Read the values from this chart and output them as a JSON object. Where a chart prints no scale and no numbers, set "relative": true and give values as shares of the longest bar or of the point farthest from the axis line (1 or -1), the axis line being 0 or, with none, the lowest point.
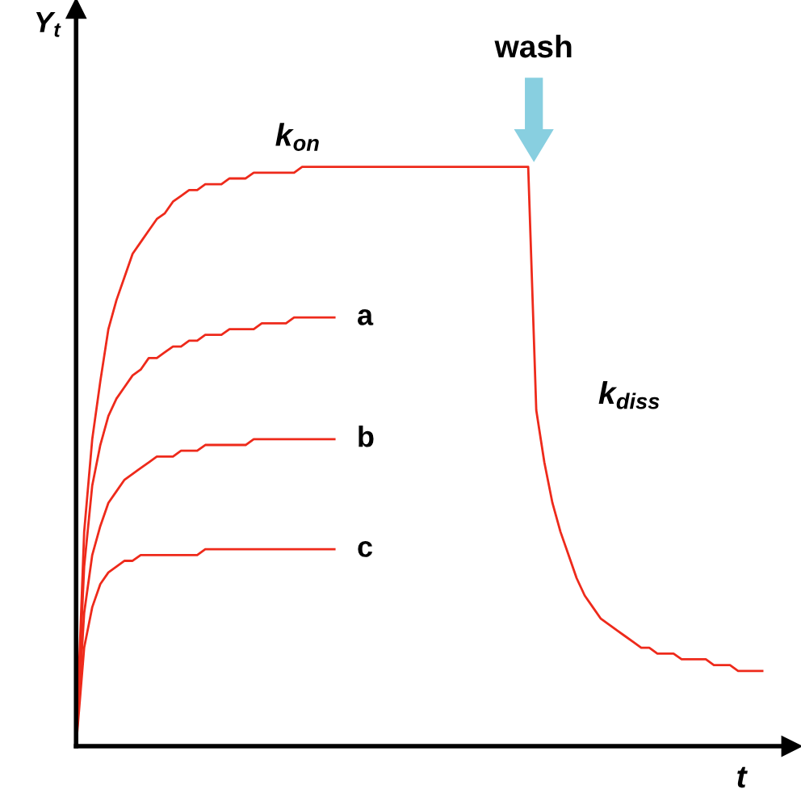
{
  "chart_data": {
    "type": "line",
    "relative": true,
    "xlabel": "t",
    "ylabel": "Y$_{t}$",
    "categories": [
      null,
      null,
      null,
      null,
      null,
      null,
      null,
      null,
      null,
      null,
      null,
      null,
      null,
      null,
      null,
      null,
      null,
      null,
      null,
      null,
      null,
      null,
      null,
      null,
      null,
      null,
      null,
      null,
      null,
      null,
      null,
      null,
      null,
      null,
      null,
      null,
      null,
      null,
      null,
      null,
      null,
      null,
      null,
      null,
      null,
      null,
      null,
      null,
      null,
      null,
      null,
      null,
      null,
      null,
      null,
      null,
      null,
      null,
      null,
      null,
      null,
      null,
      null,
      null,
      null,
      null,
      null,
      null,
      null,
      null,
      null,
      null,
      null,
      null,
      null,
      null,
      null,
      null,
      null,
      null,
      null,
      null,
      null,
      null,
      null,
      null
    ],
    "series": [
      {
        "color": "#ee2a1b",
        "values": [
          0,
          0.37,
          0.53,
          0.63,
          0.72,
          0.77,
          0.81,
          0.85,
          0.87,
          0.89,
          0.91,
          0.92,
          0.94,
          0.95,
          0.96,
          0.96,
          0.97,
          0.97,
          0.97,
          0.98,
          0.98,
          0.98,
          0.99,
          0.99,
          0.99,
          0.99,
          0.99,
          0.99,
          1,
          1,
          1,
          1,
          1,
          1,
          1,
          1,
          1,
          1,
          1,
          1,
          1,
          1,
          1,
          1,
          1,
          1,
          1,
          1,
          1,
          1,
          1,
          1,
          1,
          1,
          1,
          1,
          1,
          0.58,
          0.49,
          0.42,
          0.37,
          0.33,
          0.29,
          0.26,
          0.24,
          0.22,
          0.21,
          0.2,
          0.19,
          0.18,
          0.17,
          0.17,
          0.16,
          0.16,
          0.16,
          0.15,
          0.15,
          0.15,
          0.15,
          0.14,
          0.14,
          0.14,
          0.13,
          0.13,
          0.13,
          0.13
        ]
      },
      {
        "name": "a",
        "color": "#ee2a1b",
        "values": [
          0,
          0.31,
          0.45,
          0.52,
          0.57,
          0.6,
          0.62,
          0.64,
          0.65,
          0.67,
          0.67,
          0.68,
          0.69,
          0.69,
          0.7,
          0.7,
          0.71,
          0.71,
          0.71,
          0.72,
          0.72,
          0.72,
          0.72,
          0.73,
          0.73,
          0.73,
          0.73,
          0.74,
          0.74,
          0.74,
          0.74,
          0.74,
          0.74,
          null,
          null,
          null,
          null,
          null,
          null,
          null,
          null,
          null,
          null,
          null,
          null,
          null,
          null,
          null,
          null,
          null,
          null,
          null,
          null,
          null,
          null,
          null,
          null,
          null,
          null,
          null,
          null,
          null,
          null,
          null,
          null,
          null,
          null,
          null,
          null,
          null,
          null,
          null,
          null,
          null,
          null,
          null,
          null,
          null,
          null,
          null,
          null,
          null,
          null,
          null,
          null,
          null
        ]
      },
      {
        "name": "b",
        "color": "#ee2a1b",
        "values": [
          0,
          0.23,
          0.33,
          0.38,
          0.42,
          0.44,
          0.46,
          0.47,
          0.48,
          0.49,
          0.5,
          0.5,
          0.5,
          0.51,
          0.51,
          0.51,
          0.52,
          0.52,
          0.52,
          0.52,
          0.52,
          0.52,
          0.53,
          0.53,
          0.53,
          0.53,
          0.53,
          0.53,
          0.53,
          0.53,
          0.53,
          0.53,
          0.53,
          null,
          null,
          null,
          null,
          null,
          null,
          null,
          null,
          null,
          null,
          null,
          null,
          null,
          null,
          null,
          null,
          null,
          null,
          null,
          null,
          null,
          null,
          null,
          null,
          null,
          null,
          null,
          null,
          null,
          null,
          null,
          null,
          null,
          null,
          null,
          null,
          null,
          null,
          null,
          null,
          null,
          null,
          null,
          null,
          null,
          null,
          null,
          null,
          null,
          null,
          null,
          null,
          null
        ]
      },
      {
        "name": "c",
        "color": "#ee2a1b",
        "values": [
          0,
          0.17,
          0.24,
          0.28,
          0.3,
          0.31,
          0.32,
          0.32,
          0.33,
          0.33,
          0.33,
          0.33,
          0.33,
          0.33,
          0.33,
          0.33,
          0.34,
          0.34,
          0.34,
          0.34,
          0.34,
          0.34,
          0.34,
          0.34,
          0.34,
          0.34,
          0.34,
          0.34,
          0.34,
          0.34,
          0.34,
          0.34,
          0.34,
          null,
          null,
          null,
          null,
          null,
          null,
          null,
          null,
          null,
          null,
          null,
          null,
          null,
          null,
          null,
          null,
          null,
          null,
          null,
          null,
          null,
          null,
          null,
          null,
          null,
          null,
          null,
          null,
          null,
          null,
          null,
          null,
          null,
          null,
          null,
          null,
          null,
          null,
          null,
          null,
          null,
          null,
          null,
          null,
          null,
          null,
          null,
          null,
          null,
          null,
          null,
          null,
          null
        ]
      }
    ],
    "annotations": [
      "k$_{on}$",
      "k$_{diss}$",
      "wash"
    ],
    "legend": false,
    "marker": "none",
    "line_style": "solid"
  }
}
